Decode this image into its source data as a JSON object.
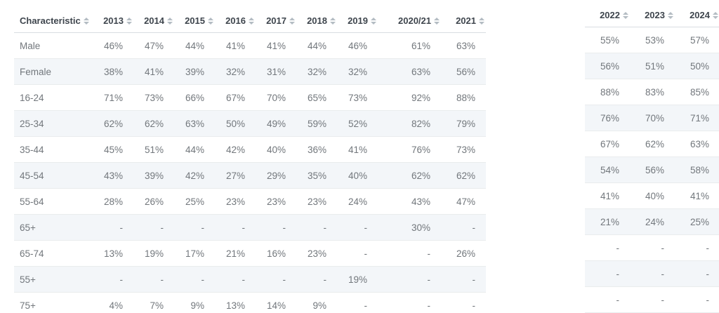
{
  "colors": {
    "header_text": "#3e454d",
    "body_text": "#72777c",
    "stripe": "#f3f6f9",
    "row_border": "#e9eced",
    "header_border": "#d9dde1",
    "sort_icon": "#b4bcc3"
  },
  "sort_icon_name": "sort-icon",
  "tables": [
    {
      "name": "characteristics-table",
      "has_label": true,
      "columns": [
        "Characteristic",
        "2013",
        "2014",
        "2015",
        "2016",
        "2017",
        "2018",
        "2019",
        "2020/21",
        "2021"
      ],
      "rows": [
        {
          "label": "Male",
          "values": [
            "46%",
            "47%",
            "44%",
            "41%",
            "41%",
            "44%",
            "46%",
            "61%",
            "63%"
          ]
        },
        {
          "label": "Female",
          "values": [
            "38%",
            "41%",
            "39%",
            "32%",
            "31%",
            "32%",
            "32%",
            "63%",
            "56%"
          ]
        },
        {
          "label": "16-24",
          "values": [
            "71%",
            "73%",
            "66%",
            "67%",
            "70%",
            "65%",
            "73%",
            "92%",
            "88%"
          ]
        },
        {
          "label": "25-34",
          "values": [
            "62%",
            "62%",
            "63%",
            "50%",
            "49%",
            "59%",
            "52%",
            "82%",
            "79%"
          ]
        },
        {
          "label": "35-44",
          "values": [
            "45%",
            "51%",
            "44%",
            "42%",
            "40%",
            "36%",
            "41%",
            "76%",
            "73%"
          ]
        },
        {
          "label": "45-54",
          "values": [
            "43%",
            "39%",
            "42%",
            "27%",
            "29%",
            "35%",
            "40%",
            "62%",
            "62%"
          ]
        },
        {
          "label": "55-64",
          "values": [
            "28%",
            "26%",
            "25%",
            "23%",
            "23%",
            "23%",
            "24%",
            "43%",
            "47%"
          ]
        },
        {
          "label": "65+",
          "values": [
            "-",
            "-",
            "-",
            "-",
            "-",
            "-",
            "-",
            "30%",
            "-"
          ]
        },
        {
          "label": "65-74",
          "values": [
            "13%",
            "19%",
            "17%",
            "21%",
            "16%",
            "23%",
            "-",
            "-",
            "26%"
          ]
        },
        {
          "label": "55+",
          "values": [
            "-",
            "-",
            "-",
            "-",
            "-",
            "-",
            "19%",
            "-",
            "-"
          ]
        },
        {
          "label": "75+",
          "values": [
            "4%",
            "7%",
            "9%",
            "13%",
            "14%",
            "9%",
            "-",
            "-",
            "-"
          ]
        }
      ]
    },
    {
      "name": "recent-years-table",
      "has_label": false,
      "columns": [
        "2022",
        "2023",
        "2024"
      ],
      "rows": [
        {
          "values": [
            "55%",
            "53%",
            "57%"
          ]
        },
        {
          "values": [
            "56%",
            "51%",
            "50%"
          ]
        },
        {
          "values": [
            "88%",
            "83%",
            "85%"
          ]
        },
        {
          "values": [
            "76%",
            "70%",
            "71%"
          ]
        },
        {
          "values": [
            "67%",
            "62%",
            "63%"
          ]
        },
        {
          "values": [
            "54%",
            "56%",
            "58%"
          ]
        },
        {
          "values": [
            "41%",
            "40%",
            "41%"
          ]
        },
        {
          "values": [
            "21%",
            "24%",
            "25%"
          ]
        },
        {
          "values": [
            "-",
            "-",
            "-"
          ]
        },
        {
          "values": [
            "-",
            "-",
            "-"
          ]
        },
        {
          "values": [
            "-",
            "-",
            "-"
          ]
        }
      ]
    }
  ]
}
